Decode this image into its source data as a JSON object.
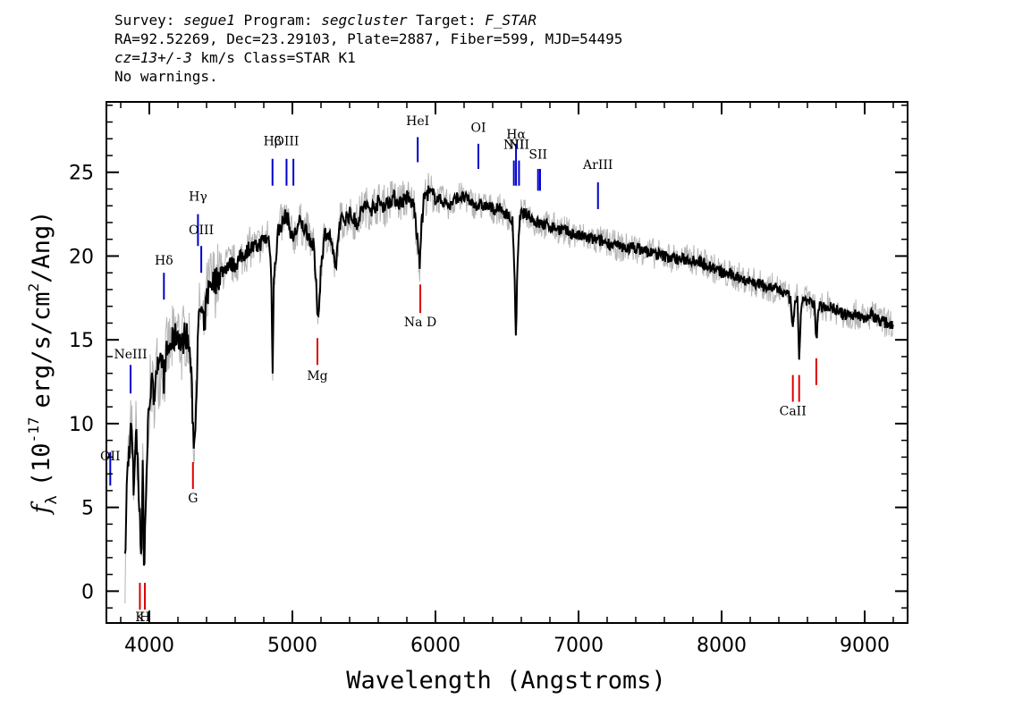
{
  "header": {
    "line1_a": "Survey: ",
    "survey": "segue1",
    "line1_b": " Program: ",
    "program": "segcluster",
    "line1_c": " Target: ",
    "target": "F_STAR",
    "line2": "RA=92.52269, Dec=23.29103, Plate=2887, Fiber=599, MJD=54495",
    "cz": "cz=13+/-3",
    "line3_b": " km/s Class=STAR K1",
    "line4": "No warnings."
  },
  "chart_data": {
    "type": "line",
    "title": "",
    "xlabel": "Wavelength (Angstroms)",
    "ylabel_main": "f",
    "ylabel_sub": "λ",
    "ylabel_rest": "(10",
    "ylabel_exp": "-17",
    "ylabel_units": "erg/s/cm",
    "ylabel_exp2": "2",
    "ylabel_tail": "/Ang)",
    "xlim": [
      3700,
      9300
    ],
    "ylim": [
      -1.9,
      29.2
    ],
    "xticks": [
      4000,
      5000,
      6000,
      7000,
      8000,
      9000
    ],
    "xtick_labels": [
      "4000",
      "5000",
      "6000",
      "7000",
      "8000",
      "9000"
    ],
    "yticks": [
      0,
      5,
      10,
      15,
      20,
      25
    ],
    "ytick_labels": [
      "0",
      "5",
      "10",
      "15",
      "20",
      "25"
    ],
    "grid": false,
    "series": [
      {
        "style": "flux",
        "color": "#000000",
        "points": [
          [
            3830,
            1.5
          ],
          [
            3845,
            7.0
          ],
          [
            3860,
            8.5
          ],
          [
            3875,
            10.0
          ],
          [
            3890,
            6.0
          ],
          [
            3905,
            9.5
          ],
          [
            3920,
            8.0
          ],
          [
            3930,
            5.0
          ],
          [
            3945,
            2.0
          ],
          [
            3955,
            9.0
          ],
          [
            3963,
            0.2
          ],
          [
            3970,
            3.5
          ],
          [
            3980,
            7.0
          ],
          [
            3990,
            9.5
          ],
          [
            4000,
            11.5
          ],
          [
            4015,
            12.5
          ],
          [
            4030,
            11.5
          ],
          [
            4050,
            13.5
          ],
          [
            4070,
            13.0
          ],
          [
            4090,
            14.0
          ],
          [
            4101,
            12.5
          ],
          [
            4115,
            14.0
          ],
          [
            4140,
            14.5
          ],
          [
            4170,
            15.0
          ],
          [
            4200,
            15.5
          ],
          [
            4226,
            14.5
          ],
          [
            4250,
            15.5
          ],
          [
            4270,
            15.0
          ],
          [
            4290,
            13.5
          ],
          [
            4305,
            10.0
          ],
          [
            4315,
            8.5
          ],
          [
            4330,
            12.5
          ],
          [
            4345,
            16.0
          ],
          [
            4360,
            17.0
          ],
          [
            4383,
            15.5
          ],
          [
            4400,
            17.5
          ],
          [
            4430,
            18.5
          ],
          [
            4460,
            18.5
          ],
          [
            4500,
            19.0
          ],
          [
            4550,
            19.5
          ],
          [
            4600,
            19.5
          ],
          [
            4650,
            20.0
          ],
          [
            4700,
            20.5
          ],
          [
            4750,
            20.5
          ],
          [
            4800,
            21.0
          ],
          [
            4840,
            21.0
          ],
          [
            4855,
            18.0
          ],
          [
            4861,
            12.8
          ],
          [
            4870,
            18.5
          ],
          [
            4900,
            21.5
          ],
          [
            4930,
            22.0
          ],
          [
            4960,
            22.5
          ],
          [
            5000,
            21.0
          ],
          [
            5050,
            22.0
          ],
          [
            5100,
            21.5
          ],
          [
            5150,
            20.5
          ],
          [
            5167,
            18.0
          ],
          [
            5173,
            17.0
          ],
          [
            5184,
            16.5
          ],
          [
            5200,
            19.5
          ],
          [
            5230,
            21.5
          ],
          [
            5270,
            21.0
          ],
          [
            5300,
            19.0
          ],
          [
            5330,
            22.0
          ],
          [
            5400,
            22.5
          ],
          [
            5450,
            22.0
          ],
          [
            5500,
            23.0
          ],
          [
            5550,
            22.8
          ],
          [
            5600,
            23.2
          ],
          [
            5650,
            23.0
          ],
          [
            5700,
            23.5
          ],
          [
            5750,
            23.2
          ],
          [
            5800,
            23.5
          ],
          [
            5850,
            23.0
          ],
          [
            5890,
            19.5
          ],
          [
            5896,
            21.0
          ],
          [
            5920,
            23.5
          ],
          [
            5950,
            23.8
          ],
          [
            6000,
            23.5
          ],
          [
            6050,
            23.3
          ],
          [
            6100,
            23.0
          ],
          [
            6150,
            23.5
          ],
          [
            6200,
            23.5
          ],
          [
            6250,
            23.2
          ],
          [
            6300,
            23.0
          ],
          [
            6350,
            23.0
          ],
          [
            6400,
            22.8
          ],
          [
            6450,
            22.8
          ],
          [
            6500,
            22.5
          ],
          [
            6540,
            22.0
          ],
          [
            6555,
            18.0
          ],
          [
            6563,
            14.5
          ],
          [
            6570,
            18.5
          ],
          [
            6590,
            22.5
          ],
          [
            6650,
            22.5
          ],
          [
            6700,
            22.0
          ],
          [
            6800,
            21.8
          ],
          [
            6900,
            21.5
          ],
          [
            7000,
            21.2
          ],
          [
            7100,
            21.0
          ],
          [
            7200,
            20.8
          ],
          [
            7300,
            20.5
          ],
          [
            7400,
            20.5
          ],
          [
            7500,
            20.2
          ],
          [
            7600,
            20.0
          ],
          [
            7700,
            19.8
          ],
          [
            7800,
            19.8
          ],
          [
            7900,
            19.5
          ],
          [
            8000,
            19.0
          ],
          [
            8100,
            18.8
          ],
          [
            8200,
            18.5
          ],
          [
            8300,
            18.2
          ],
          [
            8400,
            18.0
          ],
          [
            8480,
            17.5
          ],
          [
            8498,
            15.5
          ],
          [
            8515,
            17.5
          ],
          [
            8530,
            17.5
          ],
          [
            8542,
            13.5
          ],
          [
            8560,
            17.5
          ],
          [
            8600,
            17.3
          ],
          [
            8650,
            17.0
          ],
          [
            8662,
            15.0
          ],
          [
            8680,
            17.0
          ],
          [
            8750,
            17.0
          ],
          [
            8800,
            16.8
          ],
          [
            8850,
            16.5
          ],
          [
            8900,
            16.5
          ],
          [
            8950,
            16.5
          ],
          [
            9000,
            16.3
          ],
          [
            9050,
            16.5
          ],
          [
            9100,
            16.2
          ],
          [
            9150,
            16.0
          ],
          [
            9200,
            16.0
          ]
        ]
      }
    ],
    "emission_lines": [
      {
        "label": "OII",
        "wavelength": 3727,
        "y": 7.8,
        "y0": 6.3,
        "y1": 8.3
      },
      {
        "label": "NeIII",
        "wavelength": 3869,
        "y": 13.9,
        "y0": 11.8,
        "y1": 13.5
      },
      {
        "label": "Hδ",
        "wavelength": 4102,
        "y": 19.5,
        "y0": 17.4,
        "y1": 19.0
      },
      {
        "label": "Hγ",
        "wavelength": 4340,
        "y": 23.3,
        "y0": 20.6,
        "y1": 22.5
      },
      {
        "label": "OIII",
        "wavelength": 4363,
        "y": 21.3,
        "y0": 19.0,
        "y1": 20.6
      },
      {
        "label": "Hβ",
        "wavelength": 4861,
        "y": 26.6,
        "y0": 24.2,
        "y1": 25.8
      },
      {
        "label": "OIII",
        "wavelength": 4959,
        "y": 26.6,
        "y0": 24.2,
        "y1": 25.8
      },
      {
        "label": "",
        "wavelength": 5007,
        "y": 26.6,
        "y0": 24.2,
        "y1": 25.8
      },
      {
        "label": "HeI",
        "wavelength": 5876,
        "y": 27.8,
        "y0": 25.6,
        "y1": 27.1
      },
      {
        "label": "OI",
        "wavelength": 6300,
        "y": 27.4,
        "y0": 25.2,
        "y1": 26.7
      },
      {
        "label": "NII",
        "wavelength": 6548,
        "y": 26.4,
        "y0": 24.2,
        "y1": 25.7
      },
      {
        "label": "Hα",
        "wavelength": 6563,
        "y": 27.0,
        "y0": 24.2,
        "y1": 26.7
      },
      {
        "label": "NII",
        "wavelength": 6584,
        "y": 26.4,
        "y0": 24.2,
        "y1": 25.7
      },
      {
        "label": "SII",
        "wavelength": 6717,
        "y": 25.8,
        "y0": 23.9,
        "y1": 25.2
      },
      {
        "label": "",
        "wavelength": 6731,
        "y": 25.8,
        "y0": 23.9,
        "y1": 25.2
      },
      {
        "label": "ArIII",
        "wavelength": 7136,
        "y": 25.2,
        "y0": 22.8,
        "y1": 24.4
      }
    ],
    "absorption_lines": [
      {
        "label": "K",
        "wavelength": 3934,
        "y": -1.8,
        "y0": -1.1,
        "y1": 0.5
      },
      {
        "label": "H",
        "wavelength": 3969,
        "y": -1.8,
        "y0": -1.1,
        "y1": 0.5
      },
      {
        "label": "G",
        "wavelength": 4305,
        "y": 5.3,
        "y0": 6.1,
        "y1": 7.7
      },
      {
        "label": "Mg",
        "wavelength": 5175,
        "y": 12.6,
        "y0": 13.5,
        "y1": 15.1
      },
      {
        "label": "Na D",
        "wavelength": 5894,
        "y": 15.8,
        "y0": 16.6,
        "y1": 18.3
      },
      {
        "label": "CaII",
        "wavelength": 8498,
        "y": 10.5,
        "y0": 11.3,
        "y1": 12.9
      },
      {
        "label": "",
        "wavelength": 8542,
        "y": 10.5,
        "y0": 11.3,
        "y1": 12.9
      },
      {
        "label": "",
        "wavelength": 8662,
        "y": 10.5,
        "y0": 12.3,
        "y1": 13.9
      }
    ],
    "colors": {
      "flux": "#000000",
      "error": "#b4b4b4",
      "emission": "#0000cc",
      "absorption": "#dd0000"
    }
  }
}
